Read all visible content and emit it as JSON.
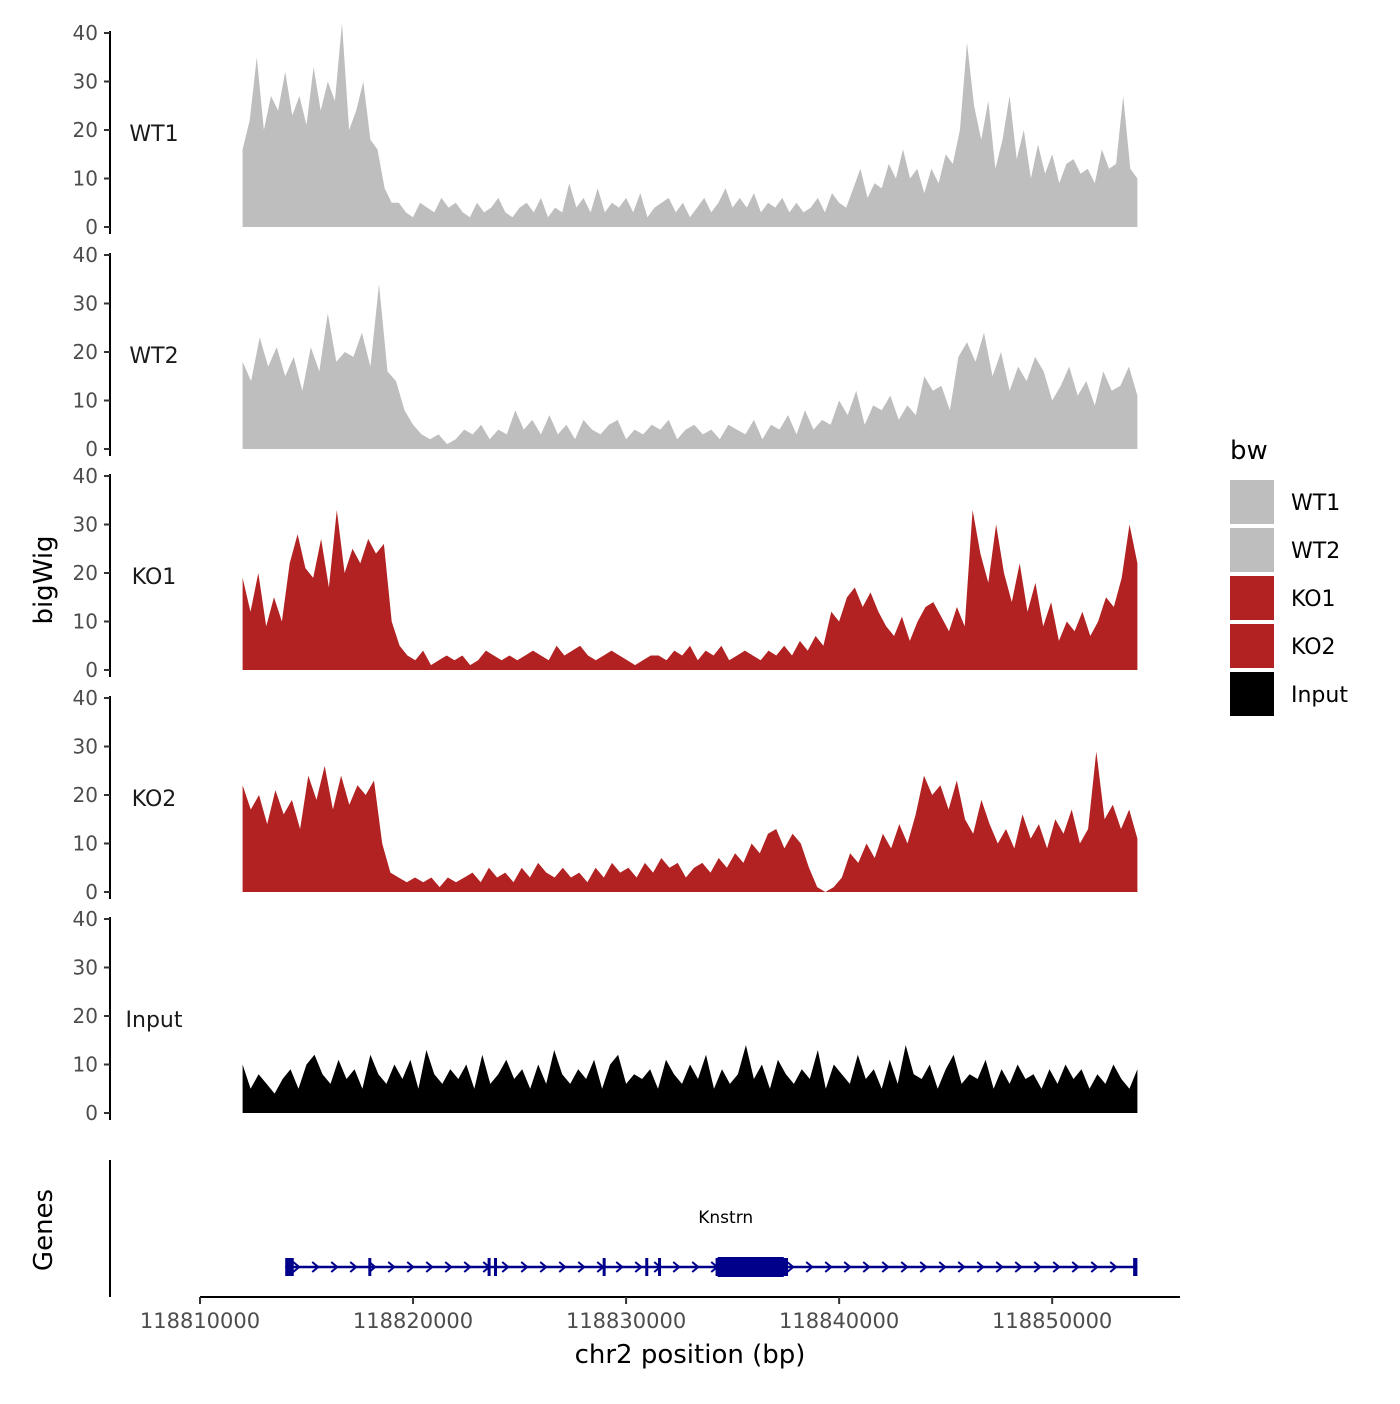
{
  "chart_data": {
    "type": "area",
    "title": "",
    "xlabel": "chr2 position (bp)",
    "ylabel": "bigWig",
    "genes_label": "Genes",
    "xlim": [
      118810000,
      118856000
    ],
    "x_ticks": [
      118810000,
      118820000,
      118830000,
      118840000,
      118850000
    ],
    "x_tick_labels": [
      "118810000",
      "118820000",
      "118830000",
      "118840000",
      "118850000"
    ],
    "ylim": [
      0,
      40
    ],
    "y_ticks": [
      0,
      10,
      20,
      30,
      40
    ],
    "y_tick_labels": [
      "0",
      "10",
      "20",
      "30",
      "40"
    ],
    "data_range": [
      118812000,
      118854000
    ],
    "legend": {
      "title": "bw",
      "position": "right",
      "entries": [
        {
          "label": "WT1",
          "color": "#bebebe"
        },
        {
          "label": "WT2",
          "color": "#bebebe"
        },
        {
          "label": "KO1",
          "color": "#b22222"
        },
        {
          "label": "KO2",
          "color": "#b22222"
        },
        {
          "label": "Input",
          "color": "#000000"
        }
      ]
    },
    "series": [
      {
        "name": "WT1",
        "color": "#bebebe",
        "values": [
          16,
          22,
          35,
          20,
          27,
          24,
          32,
          23,
          27,
          21,
          33,
          24,
          30,
          26,
          42,
          20,
          24,
          30,
          18,
          16,
          8,
          5,
          5,
          3,
          2,
          5,
          4,
          3,
          6,
          4,
          5,
          3,
          2,
          5,
          3,
          4,
          6,
          3,
          2,
          4,
          5,
          3,
          6,
          2,
          4,
          3,
          9,
          4,
          6,
          3,
          8,
          3,
          5,
          4,
          6,
          3,
          7,
          2,
          4,
          5,
          6,
          3,
          5,
          2,
          4,
          6,
          3,
          5,
          8,
          4,
          6,
          4,
          7,
          3,
          5,
          4,
          6,
          3,
          5,
          3,
          4,
          6,
          3,
          7,
          5,
          4,
          8,
          12,
          6,
          9,
          8,
          13,
          10,
          16,
          10,
          12,
          7,
          12,
          9,
          15,
          13,
          20,
          38,
          25,
          18,
          26,
          12,
          18,
          27,
          14,
          20,
          10,
          17,
          11,
          15,
          9,
          13,
          14,
          11,
          12,
          9,
          16,
          12,
          13,
          27,
          12,
          10
        ]
      },
      {
        "name": "WT2",
        "color": "#bebebe",
        "values": [
          18,
          14,
          23,
          17,
          21,
          15,
          19,
          12,
          21,
          16,
          28,
          18,
          20,
          19,
          24,
          17,
          34,
          16,
          14,
          8,
          5,
          3,
          2,
          3,
          1,
          2,
          4,
          3,
          5,
          2,
          4,
          3,
          8,
          4,
          6,
          3,
          7,
          3,
          5,
          2,
          6,
          4,
          3,
          5,
          6,
          2,
          4,
          3,
          5,
          4,
          6,
          2,
          4,
          5,
          3,
          4,
          2,
          5,
          4,
          3,
          6,
          2,
          5,
          4,
          7,
          3,
          8,
          4,
          6,
          5,
          10,
          7,
          12,
          5,
          9,
          8,
          11,
          6,
          9,
          7,
          15,
          12,
          13,
          8,
          19,
          22,
          18,
          24,
          15,
          20,
          12,
          17,
          14,
          19,
          16,
          10,
          13,
          17,
          11,
          14,
          9,
          16,
          12,
          13,
          17,
          11
        ]
      },
      {
        "name": "KO1",
        "color": "#b22222",
        "values": [
          19,
          12,
          20,
          9,
          15,
          10,
          22,
          28,
          21,
          19,
          27,
          17,
          33,
          20,
          25,
          22,
          27,
          24,
          26,
          10,
          5,
          3,
          2,
          4,
          1,
          2,
          3,
          2,
          3,
          1,
          2,
          4,
          3,
          2,
          3,
          2,
          3,
          4,
          3,
          2,
          5,
          3,
          4,
          5,
          3,
          2,
          3,
          4,
          3,
          2,
          1,
          2,
          3,
          3,
          2,
          4,
          3,
          5,
          2,
          4,
          3,
          5,
          2,
          3,
          4,
          3,
          2,
          4,
          3,
          5,
          3,
          6,
          4,
          7,
          5,
          12,
          10,
          15,
          17,
          13,
          16,
          12,
          9,
          7,
          11,
          6,
          10,
          13,
          14,
          11,
          8,
          13,
          9,
          33,
          24,
          18,
          30,
          20,
          14,
          22,
          12,
          18,
          9,
          14,
          6,
          10,
          8,
          12,
          7,
          10,
          15,
          13,
          19,
          30,
          22
        ]
      },
      {
        "name": "KO2",
        "color": "#b22222",
        "values": [
          22,
          17,
          20,
          14,
          21,
          16,
          19,
          13,
          24,
          19,
          26,
          17,
          24,
          18,
          22,
          20,
          23,
          10,
          4,
          3,
          2,
          3,
          2,
          3,
          1,
          3,
          2,
          3,
          4,
          2,
          5,
          3,
          4,
          2,
          5,
          3,
          6,
          4,
          3,
          5,
          3,
          4,
          2,
          5,
          3,
          6,
          4,
          5,
          3,
          6,
          4,
          7,
          5,
          6,
          3,
          5,
          6,
          4,
          7,
          5,
          8,
          6,
          10,
          8,
          12,
          13,
          9,
          12,
          10,
          5,
          1,
          0,
          1,
          3,
          8,
          6,
          10,
          7,
          12,
          9,
          14,
          10,
          16,
          24,
          20,
          22,
          17,
          23,
          15,
          12,
          19,
          14,
          10,
          13,
          9,
          16,
          11,
          14,
          9,
          15,
          12,
          17,
          10,
          13,
          29,
          15,
          18,
          13,
          17,
          11
        ]
      },
      {
        "name": "Input",
        "color": "#000000",
        "values": [
          10,
          5,
          8,
          6,
          4,
          7,
          9,
          5,
          10,
          12,
          8,
          6,
          11,
          7,
          9,
          5,
          12,
          8,
          6,
          10,
          7,
          11,
          5,
          13,
          8,
          6,
          9,
          7,
          10,
          5,
          12,
          6,
          8,
          11,
          7,
          9,
          5,
          10,
          6,
          13,
          8,
          6,
          9,
          7,
          11,
          5,
          10,
          12,
          6,
          8,
          7,
          9,
          5,
          11,
          8,
          6,
          10,
          7,
          12,
          5,
          9,
          6,
          8,
          14,
          7,
          10,
          5,
          11,
          8,
          6,
          9,
          7,
          13,
          5,
          10,
          8,
          6,
          12,
          7,
          9,
          5,
          11,
          6,
          14,
          8,
          7,
          10,
          5,
          9,
          12,
          6,
          8,
          7,
          11,
          5,
          9,
          6,
          10,
          7,
          8,
          5,
          9,
          6,
          10,
          7,
          9,
          5,
          8,
          6,
          10,
          7,
          5,
          9
        ]
      }
    ],
    "gene_track": {
      "label": "Knstrn",
      "strand": "+",
      "color": "#00008b",
      "start": 118814000,
      "end": 118854000,
      "exons": [
        [
          118814000,
          118814400
        ],
        [
          118817900,
          118818000
        ],
        [
          118823500,
          118823600
        ],
        [
          118823800,
          118823900
        ],
        [
          118828900,
          118829000
        ],
        [
          118830900,
          118831000
        ],
        [
          118831500,
          118831600
        ],
        [
          118834200,
          118837600
        ],
        [
          118853800,
          118854000
        ]
      ],
      "cds": [
        118834300,
        118837400
      ]
    }
  }
}
